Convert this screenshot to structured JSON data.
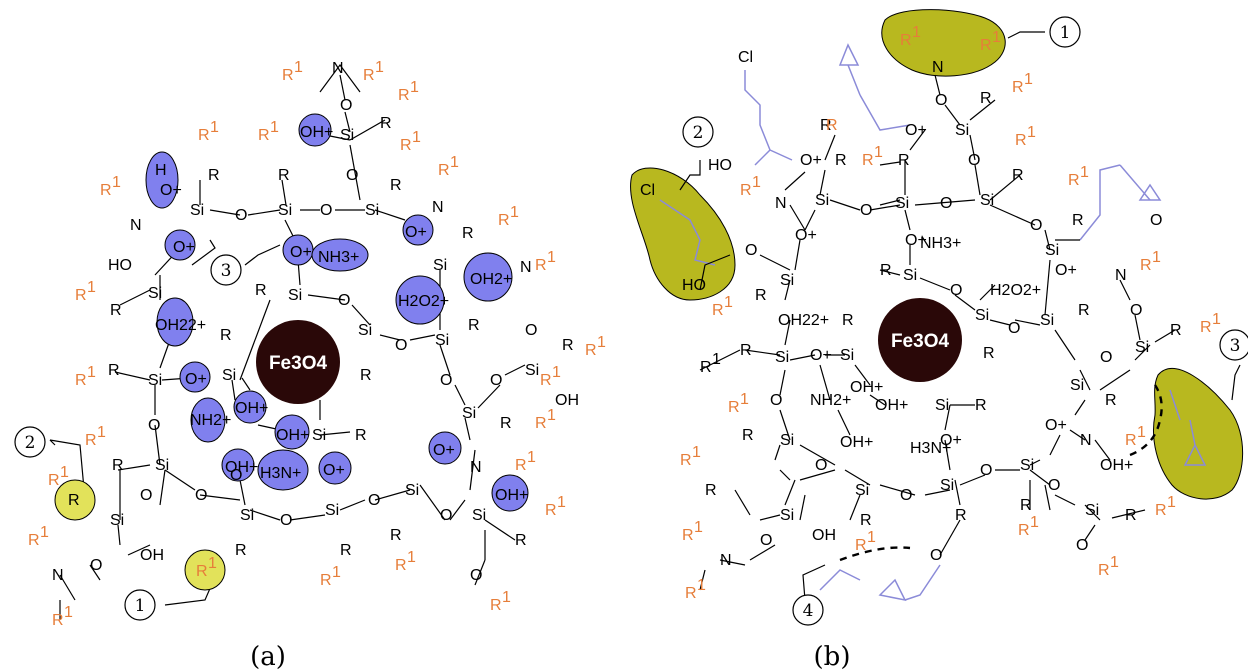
{
  "panels": {
    "a": {
      "label": "(a)",
      "core": "Fe3O4",
      "markers": [
        "1",
        "2",
        "3"
      ]
    },
    "b": {
      "label": "(b)",
      "core": "Fe3O4",
      "markers": [
        "1",
        "2",
        "3",
        "4"
      ]
    }
  },
  "atoms": {
    "Si": "Si",
    "O": "O",
    "N": "N",
    "R": "R",
    "R1": "R",
    "sup1": "1",
    "OH": "OH",
    "HO": "HO",
    "Cl": "Cl",
    "H": "H"
  },
  "charged": {
    "OH_plus": "OH+",
    "O_plus": "O+",
    "NH3_plus": "NH3+",
    "OH2_2plus": "OH22+",
    "H2O_2plus": "H2O2+",
    "OH_2plus": "OH2+",
    "NH2_plus": "NH2+",
    "H3N_plus": "H3N+"
  },
  "colors": {
    "protonated_highlight": "#8080ee",
    "reactive_site_a": "#e2e25a",
    "reactive_site_b": "#b8b81f",
    "substituent_R1": "#e67e3a",
    "glycidyl_chain": "#8b8bd8",
    "core_fill": "#2a0808"
  }
}
